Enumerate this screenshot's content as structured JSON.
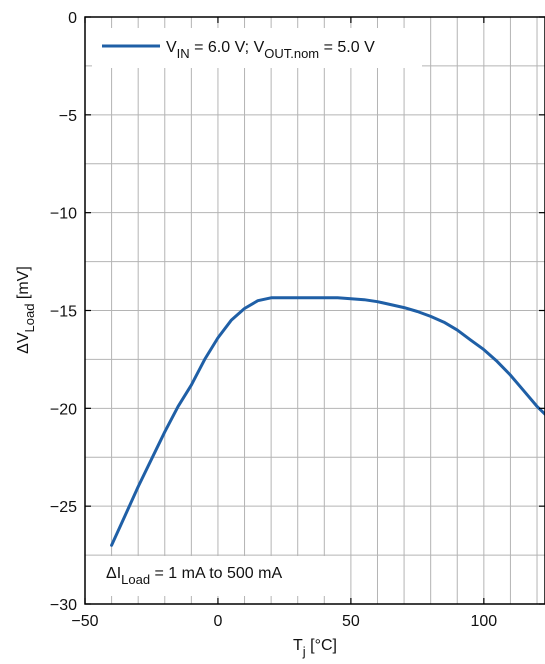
{
  "chart_data": {
    "type": "line",
    "xlabel": {
      "main": "T",
      "sub": "j",
      "unit": " [°C]"
    },
    "ylabel": {
      "prefix": "ΔV",
      "sub": "Load",
      "unit": " [mV]"
    },
    "xlim": [
      -50,
      123
    ],
    "ylim": [
      -30,
      0
    ],
    "x_ticks": [
      -50,
      0,
      50,
      100
    ],
    "y_ticks": [
      0,
      -5,
      -10,
      -15,
      -20,
      -25,
      -30
    ],
    "x_minor_step": 10,
    "y_minor_step": 2.5,
    "grid": true,
    "colors": {
      "series": "#1f5fa6",
      "grid": "#b4b4b4",
      "axis": "#000000"
    },
    "legend": {
      "position": "top-left",
      "text": [
        "V",
        "IN",
        " = 6.0 V; V",
        "OUT.nom",
        " = 5.0 V"
      ]
    },
    "annotation": {
      "position": "bottom-left",
      "text": [
        "ΔI",
        "Load",
        " = 1 mA to 500 mA"
      ]
    },
    "series": [
      {
        "name": "V_IN = 6.0 V; V_OUT.nom = 5.0 V",
        "x": [
          -40,
          -35,
          -30,
          -25,
          -20,
          -15,
          -10,
          -5,
          0,
          5,
          10,
          15,
          20,
          25,
          30,
          35,
          40,
          45,
          50,
          55,
          60,
          65,
          70,
          75,
          80,
          85,
          90,
          95,
          100,
          105,
          110,
          115,
          120,
          123
        ],
        "y": [
          -27.0,
          -25.5,
          -24.0,
          -22.6,
          -21.2,
          -19.9,
          -18.8,
          -17.5,
          -16.4,
          -15.5,
          -14.9,
          -14.5,
          -14.35,
          -14.35,
          -14.35,
          -14.35,
          -14.35,
          -14.35,
          -14.4,
          -14.45,
          -14.55,
          -14.7,
          -14.85,
          -15.05,
          -15.3,
          -15.6,
          -16.0,
          -16.5,
          -17.0,
          -17.6,
          -18.3,
          -19.1,
          -19.9,
          -20.3
        ]
      }
    ]
  }
}
